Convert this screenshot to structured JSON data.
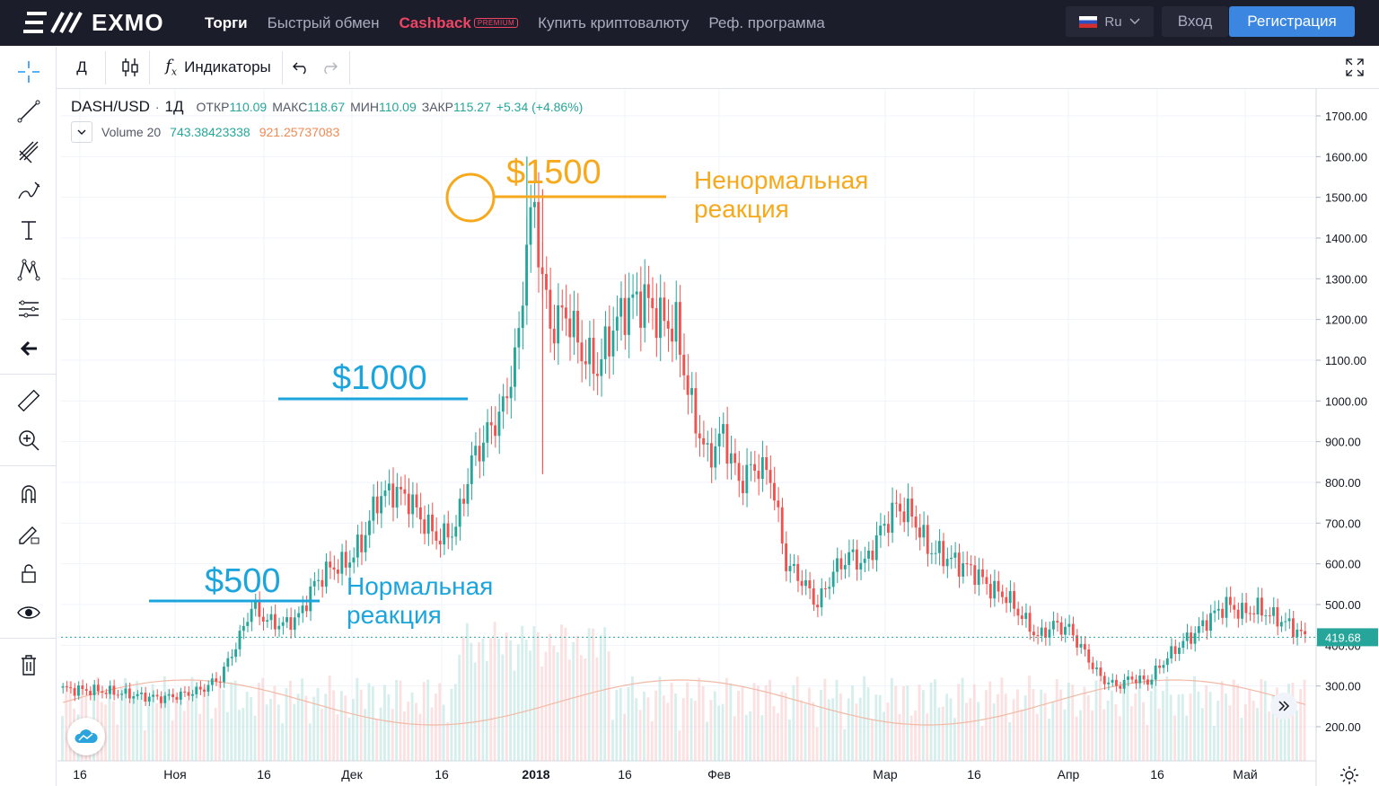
{
  "brand": {
    "logo_text": "EXMO"
  },
  "nav": {
    "items": [
      "Торги",
      "Быстрый обмен"
    ],
    "cashback": "Cashback",
    "premium": "PREMIUM",
    "items2": [
      "Купить криптовалюту",
      "Реф. программа"
    ],
    "lang": "Ru",
    "login": "Вход",
    "register": "Регистрация"
  },
  "toolbar": {
    "interval": "Д",
    "indicators": "Индикаторы"
  },
  "legend": {
    "symbol": "DASH/USD",
    "interval": "1Д",
    "open_label": "ОТКР",
    "open": "110.09",
    "high_label": "МАКС",
    "high": "118.67",
    "low_label": "МИН",
    "low": "110.09",
    "close_label": "ЗАКР",
    "close": "115.27",
    "change": "+5.34 (+4.86%)",
    "volume_label": "Volume 20",
    "volume_a": "743.38423338",
    "volume_b": "921.25737083"
  },
  "annotations": {
    "p1500": "$1500",
    "p1000": "$1000",
    "p500": "$500",
    "abnormal_1": "Ненормальная",
    "abnormal_2": "реакция",
    "normal_1": "Нормальная",
    "normal_2": "реакция"
  },
  "chart_data": {
    "type": "candlestick",
    "symbol": "DASH/USD",
    "interval": "1D",
    "ylim": [
      150,
      1750
    ],
    "y_ticks": [
      "1700.00",
      "1600.00",
      "1500.00",
      "1400.00",
      "1300.00",
      "1200.00",
      "1100.00",
      "1000.00",
      "900.00",
      "800.00",
      "700.00",
      "600.00",
      "500.00",
      "400.00",
      "300.00",
      "200.00"
    ],
    "x_ticks": [
      "16",
      "Ноя",
      "16",
      "Дек",
      "16",
      "2018",
      "16",
      "Фев",
      "Мар",
      "16",
      "Апр",
      "16",
      "Май"
    ],
    "last_price": "419.68",
    "close_path": [
      [
        0,
        293
      ],
      [
        5,
        290
      ],
      [
        10,
        288
      ],
      [
        15,
        282
      ],
      [
        20,
        275
      ],
      [
        25,
        270
      ],
      [
        30,
        278
      ],
      [
        35,
        290
      ],
      [
        40,
        320
      ],
      [
        45,
        420
      ],
      [
        48,
        495
      ],
      [
        52,
        460
      ],
      [
        56,
        450
      ],
      [
        60,
        470
      ],
      [
        64,
        550
      ],
      [
        68,
        590
      ],
      [
        72,
        600
      ],
      [
        76,
        650
      ],
      [
        80,
        760
      ],
      [
        84,
        780
      ],
      [
        88,
        760
      ],
      [
        92,
        700
      ],
      [
        96,
        660
      ],
      [
        100,
        690
      ],
      [
        104,
        850
      ],
      [
        108,
        920
      ],
      [
        112,
        980
      ],
      [
        116,
        1150
      ],
      [
        118,
        1400
      ],
      [
        120,
        1470
      ],
      [
        122,
        1300
      ],
      [
        124,
        1180
      ],
      [
        128,
        1220
      ],
      [
        132,
        1120
      ],
      [
        136,
        1080
      ],
      [
        140,
        1180
      ],
      [
        144,
        1240
      ],
      [
        148,
        1250
      ],
      [
        152,
        1200
      ],
      [
        156,
        1180
      ],
      [
        160,
        980
      ],
      [
        164,
        860
      ],
      [
        168,
        920
      ],
      [
        172,
        800
      ],
      [
        176,
        840
      ],
      [
        180,
        820
      ],
      [
        184,
        600
      ],
      [
        188,
        560
      ],
      [
        192,
        500
      ],
      [
        196,
        580
      ],
      [
        200,
        620
      ],
      [
        204,
        600
      ],
      [
        208,
        680
      ],
      [
        212,
        740
      ],
      [
        216,
        720
      ],
      [
        220,
        640
      ],
      [
        224,
        620
      ],
      [
        228,
        600
      ],
      [
        232,
        580
      ],
      [
        236,
        540
      ],
      [
        240,
        520
      ],
      [
        244,
        470
      ],
      [
        248,
        420
      ],
      [
        252,
        450
      ],
      [
        256,
        440
      ],
      [
        260,
        380
      ],
      [
        264,
        320
      ],
      [
        268,
        300
      ],
      [
        272,
        320
      ],
      [
        276,
        310
      ],
      [
        280,
        360
      ],
      [
        284,
        400
      ],
      [
        288,
        430
      ],
      [
        292,
        470
      ],
      [
        296,
        500
      ],
      [
        300,
        480
      ],
      [
        304,
        490
      ],
      [
        308,
        470
      ],
      [
        312,
        450
      ],
      [
        316,
        419.68
      ]
    ],
    "annotations": [
      {
        "label": "$1500",
        "price": 1500,
        "note": "Ненормальная реакция"
      },
      {
        "label": "$1000",
        "price": 1000
      },
      {
        "label": "$500",
        "price": 500,
        "note": "Нормальная реакция"
      }
    ]
  },
  "colors": {
    "up": "#26a69a",
    "down": "#ef5350",
    "annotation_blue": "#1ba5dc",
    "annotation_orange": "#f6a91c",
    "nav_bg": "#1c1d2b",
    "register_btn": "#3b86e0"
  }
}
